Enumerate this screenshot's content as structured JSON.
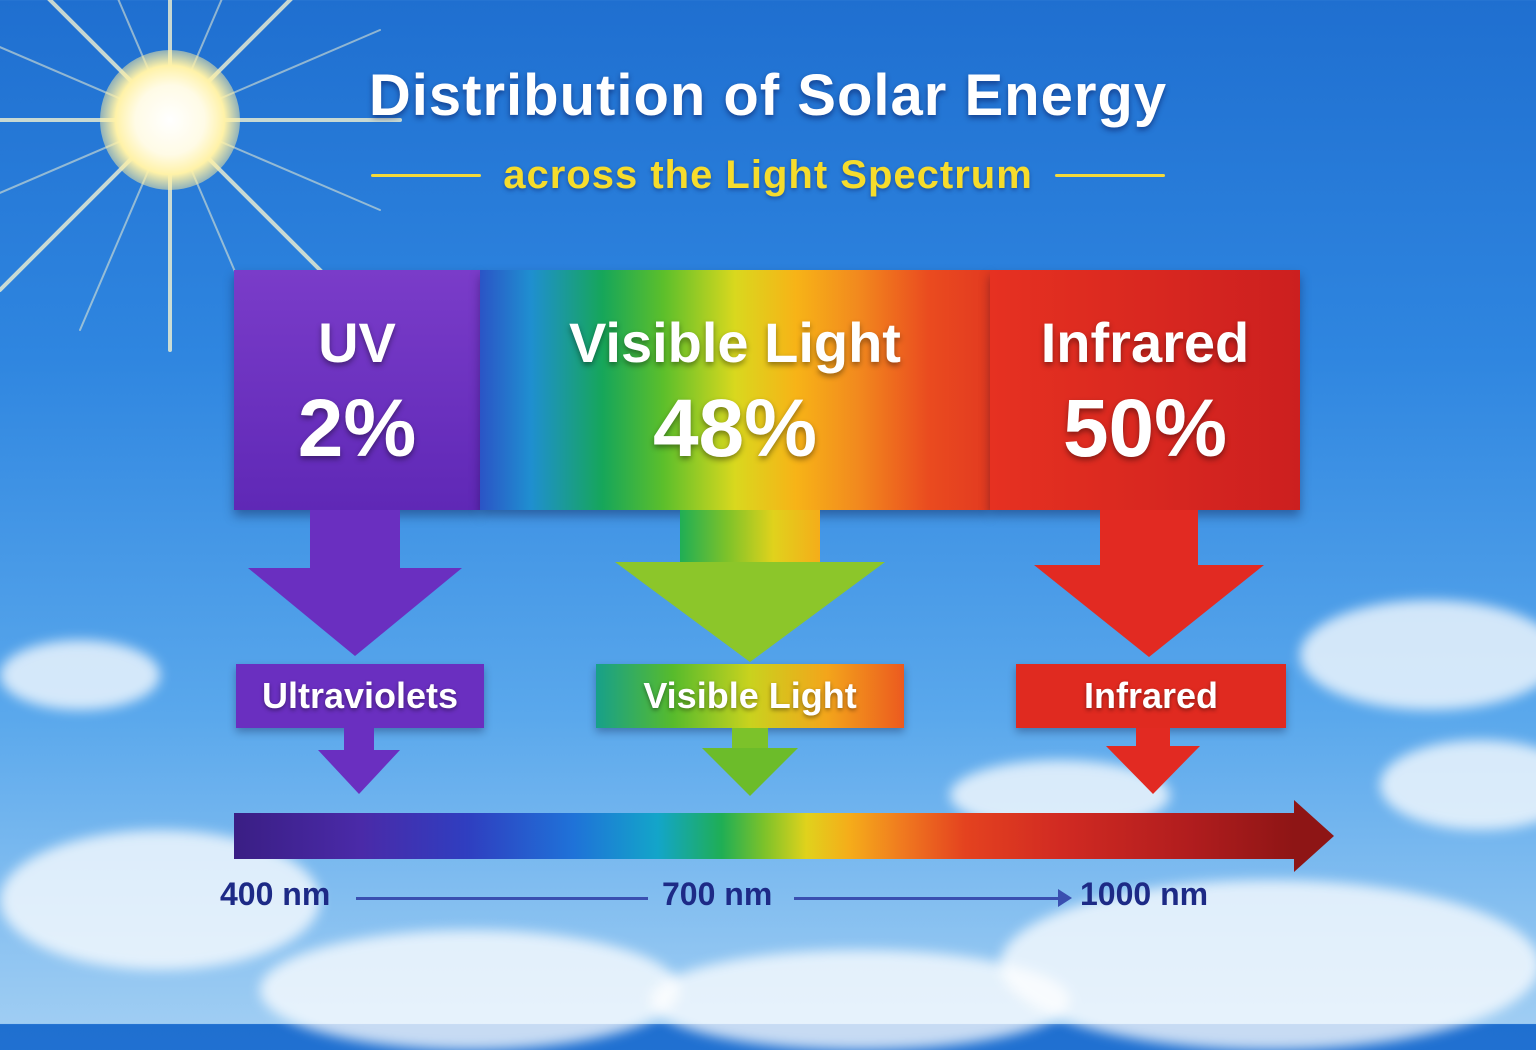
{
  "title": "Distribution of Solar Energy",
  "subtitle": "across the Light Spectrum",
  "bands": [
    {
      "name": "UV",
      "percent": "2%",
      "value": 2,
      "color": "#6a30be"
    },
    {
      "name": "Visible Light",
      "percent": "48%",
      "value": 48,
      "color": "#5cbf2b"
    },
    {
      "name": "Infrared",
      "percent": "50%",
      "value": 50,
      "color": "#e02a20"
    }
  ],
  "labels": {
    "uv": "Ultraviolets",
    "visible": "Visible Light",
    "infrared": "Infrared"
  },
  "scale": {
    "start": "400 nm",
    "mid": "700 nm",
    "end": "1000 nm"
  },
  "colors": {
    "title": "#ffffff",
    "subtitle": "#f6dc2c",
    "scale_text": "#1d2a86"
  }
}
